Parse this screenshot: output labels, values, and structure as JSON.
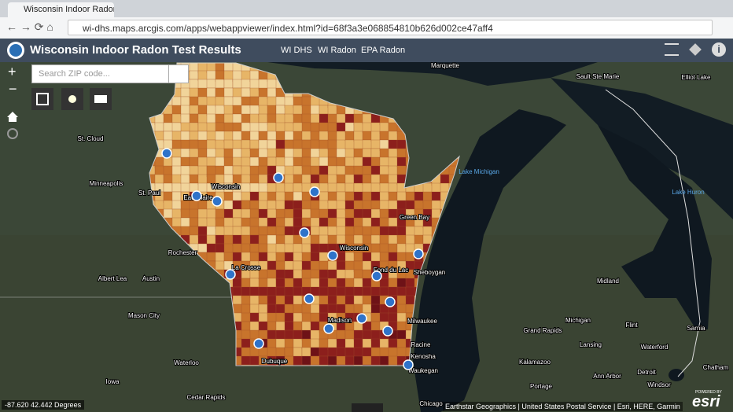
{
  "browser": {
    "tab_title": "Wisconsin Indoor Radon Te",
    "url": "wi-dhs.maps.arcgis.com/apps/webappviewer/index.html?id=68f3a3e068854810b626d002ce47aff4"
  },
  "header": {
    "title": "Wisconsin Indoor Radon Test Results",
    "links": [
      "WI DHS",
      "WI Radon",
      "EPA Radon"
    ]
  },
  "search": {
    "placeholder": "Search ZIP code..."
  },
  "map": {
    "labels": [
      "Marquette",
      "Sault Ste Marie",
      "Elliot Lake",
      "St. Cloud",
      "Minneapolis",
      "St. Paul",
      "Eau Claire",
      "Wisconsin",
      "Wisconsin",
      "Green Bay",
      "Lake Michigan",
      "Lake Huron",
      "Rochester",
      "Albert Lea",
      "Austin",
      "La Crosse",
      "Fond du Lac",
      "Sheboygan",
      "Midland",
      "Mason City",
      "Madison",
      "Milwaukee",
      "Michigan",
      "Flint",
      "Grand Rapids",
      "Lansing",
      "Waterford",
      "Racine",
      "Kenosha",
      "Waukegan",
      "Dubuque",
      "Waterloo",
      "Iowa",
      "Kalamazoo",
      "Ann Arbor",
      "Detroit",
      "Windsor",
      "Portage",
      "Cedar Rapids",
      "Chicago",
      "Sarnia",
      "Chatham"
    ],
    "coordinates": "-87.620 42.442 Degrees",
    "attribution": "Earthstar Geographics | United States Postal Service | Esri, HERE, Garmin",
    "powered_by": "POWERED BY",
    "logo": "esri"
  }
}
